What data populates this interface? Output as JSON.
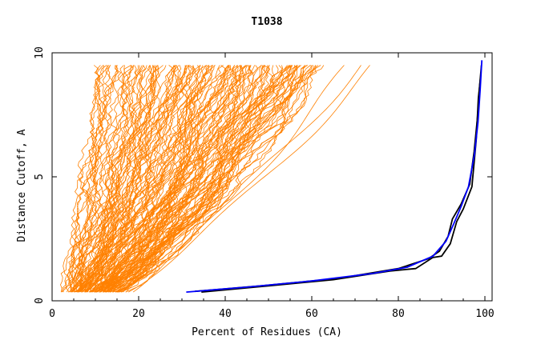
{
  "chart_data": {
    "type": "line",
    "title": "T1038",
    "xlabel": "Percent of Residues (CA)",
    "ylabel": "Distance Cutoff, A",
    "xlim": [
      0,
      100
    ],
    "ylim": [
      0,
      10
    ],
    "x_ticks": [
      "0",
      "20",
      "40",
      "60",
      "80",
      "100"
    ],
    "y_ticks": [
      "0",
      "5",
      "10"
    ],
    "grid": false,
    "colors": {
      "models": "#ff8000",
      "best_a": "#000000",
      "best_b": "#0000ff",
      "axes": "#000000"
    },
    "highlight_series": [
      {
        "color": "#000000",
        "points": [
          [
            34.5,
            0.35
          ],
          [
            50,
            0.6
          ],
          [
            65,
            0.85
          ],
          [
            78,
            1.2
          ],
          [
            84,
            1.3
          ],
          [
            88,
            1.75
          ],
          [
            90,
            1.8
          ],
          [
            92,
            2.3
          ],
          [
            93.5,
            3.2
          ],
          [
            95,
            3.7
          ],
          [
            97,
            4.6
          ],
          [
            98,
            6.5
          ],
          [
            98.5,
            8.2
          ],
          [
            99,
            9.0
          ]
        ]
      },
      {
        "color": "#000000",
        "points": [
          [
            33,
            0.38
          ],
          [
            48,
            0.6
          ],
          [
            66,
            0.9
          ],
          [
            80,
            1.3
          ],
          [
            87,
            1.7
          ],
          [
            89.5,
            2.0
          ],
          [
            91.5,
            2.6
          ],
          [
            92.5,
            3.3
          ],
          [
            94.5,
            3.9
          ],
          [
            96.5,
            4.7
          ],
          [
            97.5,
            6.0
          ],
          [
            98.3,
            7.4
          ],
          [
            98.8,
            8.7
          ],
          [
            99.2,
            9.5
          ]
        ]
      },
      {
        "color": "#0000ff",
        "points": [
          [
            31,
            0.35
          ],
          [
            45,
            0.55
          ],
          [
            60,
            0.8
          ],
          [
            74,
            1.1
          ],
          [
            82,
            1.35
          ],
          [
            88,
            1.8
          ],
          [
            91,
            2.4
          ],
          [
            92.8,
            3.1
          ],
          [
            94.5,
            3.8
          ],
          [
            96.2,
            4.6
          ],
          [
            97.6,
            5.9
          ],
          [
            98.4,
            7.2
          ],
          [
            98.9,
            8.5
          ],
          [
            99.3,
            9.7
          ]
        ]
      }
    ]
  }
}
